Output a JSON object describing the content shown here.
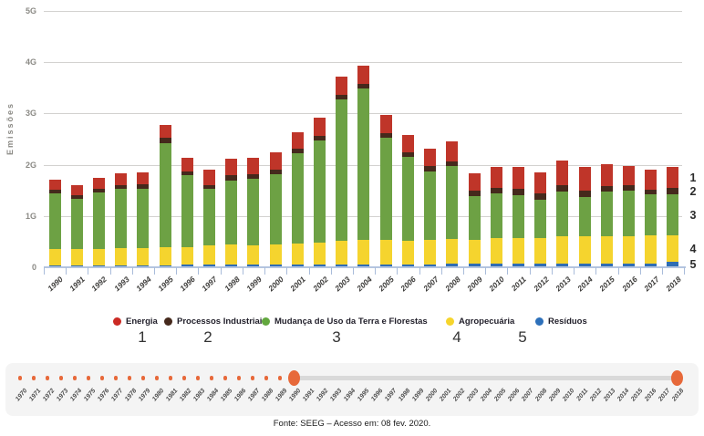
{
  "chart_data": {
    "type": "bar",
    "stacked": true,
    "ylabel": "Emissões",
    "ylim": [
      0,
      5
    ],
    "ytick_labels": [
      "0",
      "1G",
      "2G",
      "3G",
      "4G",
      "5G"
    ],
    "grid": true,
    "legend_position": "bottom",
    "categories": [
      "1990",
      "1991",
      "1992",
      "1993",
      "1994",
      "1995",
      "1996",
      "1997",
      "1998",
      "1999",
      "2000",
      "2001",
      "2002",
      "2003",
      "2004",
      "2005",
      "2006",
      "2007",
      "2008",
      "2009",
      "2010",
      "2011",
      "2012",
      "2013",
      "2014",
      "2015",
      "2016",
      "2017",
      "2018"
    ],
    "series": [
      {
        "name": "Resíduos",
        "color": "#2f6db4",
        "values": [
          0.04,
          0.04,
          0.04,
          0.04,
          0.04,
          0.04,
          0.05,
          0.05,
          0.05,
          0.05,
          0.05,
          0.05,
          0.05,
          0.06,
          0.06,
          0.06,
          0.06,
          0.06,
          0.07,
          0.07,
          0.07,
          0.07,
          0.07,
          0.08,
          0.08,
          0.08,
          0.08,
          0.08,
          0.1
        ]
      },
      {
        "name": "Agropecuária",
        "color": "#f5d42e",
        "values": [
          0.31,
          0.32,
          0.32,
          0.33,
          0.34,
          0.36,
          0.35,
          0.37,
          0.39,
          0.38,
          0.4,
          0.41,
          0.43,
          0.45,
          0.47,
          0.47,
          0.46,
          0.47,
          0.48,
          0.46,
          0.5,
          0.5,
          0.5,
          0.52,
          0.53,
          0.53,
          0.53,
          0.54,
          0.52
        ]
      },
      {
        "name": "Mudança de Uso da Terra e Florestas",
        "color": "#6da144",
        "values": [
          1.1,
          0.97,
          1.1,
          1.17,
          1.16,
          2.03,
          1.39,
          1.11,
          1.25,
          1.3,
          1.36,
          1.76,
          2.0,
          2.77,
          2.95,
          2.0,
          1.63,
          1.34,
          1.42,
          0.85,
          0.87,
          0.84,
          0.74,
          0.88,
          0.76,
          0.86,
          0.89,
          0.8,
          0.8
        ]
      },
      {
        "name": "Processos Industriais",
        "color": "#45291c",
        "values": [
          0.07,
          0.07,
          0.07,
          0.07,
          0.08,
          0.09,
          0.08,
          0.08,
          0.1,
          0.09,
          0.1,
          0.09,
          0.09,
          0.09,
          0.09,
          0.09,
          0.09,
          0.1,
          0.1,
          0.11,
          0.11,
          0.12,
          0.13,
          0.12,
          0.12,
          0.11,
          0.1,
          0.1,
          0.13
        ]
      },
      {
        "name": "Energia",
        "color": "#bf3529",
        "values": [
          0.2,
          0.2,
          0.22,
          0.23,
          0.24,
          0.26,
          0.27,
          0.3,
          0.33,
          0.31,
          0.33,
          0.32,
          0.34,
          0.34,
          0.36,
          0.35,
          0.34,
          0.34,
          0.38,
          0.35,
          0.4,
          0.43,
          0.41,
          0.48,
          0.46,
          0.43,
          0.38,
          0.38,
          0.4
        ]
      }
    ]
  },
  "legend": {
    "items": [
      {
        "label": "Energia",
        "color": "#cb2a24",
        "number": "1"
      },
      {
        "label": "Processos Industriais",
        "color": "#45291c",
        "number": "2"
      },
      {
        "label": "Mudança de Uso da Terra e Florestas",
        "color": "#62a73e",
        "number": "3"
      },
      {
        "label": "Agropecuária",
        "color": "#f6d52c",
        "number": "4"
      },
      {
        "label": "Resíduos",
        "color": "#2d70ba",
        "number": "5"
      }
    ]
  },
  "stack_annotations": [
    "1",
    "2",
    "3",
    "4",
    "5"
  ],
  "timeline": {
    "years": [
      "1970",
      "1971",
      "1972",
      "1973",
      "1974",
      "1975",
      "1976",
      "1977",
      "1978",
      "1979",
      "1980",
      "1981",
      "1982",
      "1983",
      "1984",
      "1985",
      "1986",
      "1987",
      "1988",
      "1989",
      "1990",
      "1991",
      "1992",
      "1993",
      "1994",
      "1995",
      "1996",
      "1997",
      "1998",
      "1999",
      "2000",
      "2001",
      "2002",
      "2003",
      "2004",
      "2005",
      "2006",
      "2007",
      "2008",
      "2009",
      "2010",
      "2011",
      "2012",
      "2013",
      "2014",
      "2015",
      "2016",
      "2017",
      "2018"
    ],
    "range_start": "1990",
    "range_end": "2018"
  },
  "caption": "Fonte: SEEG – Acesso em: 08 fev. 2020."
}
